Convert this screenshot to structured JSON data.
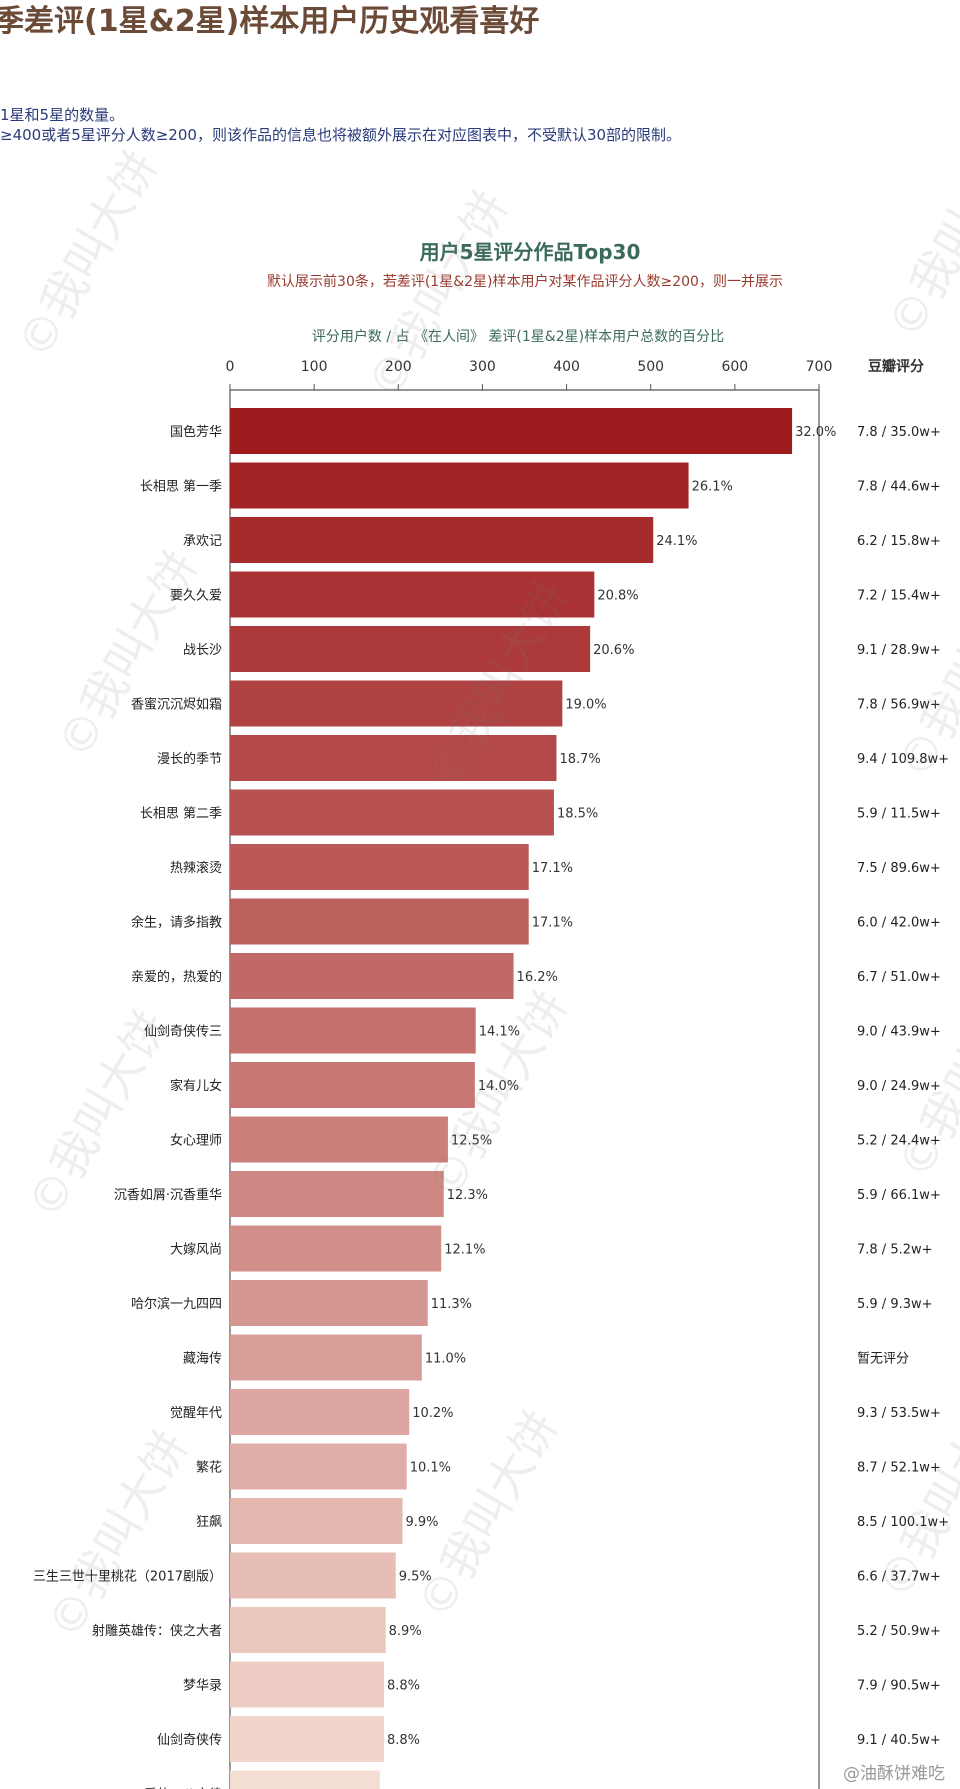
{
  "header": {
    "title": "季差评(1星&2星)样本用户历史观看喜好",
    "note1": "1星和5星的数量。",
    "note2": "≥400或者5星评分人数≥200，则该作品的信息也将被额外展示在对应图表中，不受默认30部的限制。"
  },
  "watermark_text": "©我叫大饼",
  "footer_brand": "油酥饼难吃",
  "chart_data": {
    "type": "bar",
    "title": "用户5星评分作品Top30",
    "subtitle": "默认展示前30条，若差评(1星&2星)样本用户对某作品评分人数≥200，则一并展示",
    "xlabel": "评分用户数 / 占 《在人间》 差评(1星&2星)样本用户总数的百分比",
    "right_header": "豆瓣评分",
    "xlim": [
      0,
      700
    ],
    "xticks": [
      "0",
      "100",
      "200",
      "300",
      "400",
      "500",
      "600",
      "700"
    ],
    "grid": false,
    "colors": {
      "dark": "#9e1b1e",
      "light": "#f4ddd2"
    },
    "categories": [
      "国色芳华",
      "长相思 第一季",
      "承欢记",
      "要久久爱",
      "战长沙",
      "香蜜沉沉烬如霜",
      "漫长的季节",
      "长相思 第二季",
      "热辣滚烫",
      "余生，请多指教",
      "亲爱的，热爱的",
      "仙剑奇侠传三",
      "家有儿女",
      "女心理师",
      "沉香如屑·沉香重华",
      "大嫁风尚",
      "哈尔滨一九四四",
      "藏海传",
      "觉醒年代",
      "繁花",
      "狂飙",
      "三生三世十里桃花（2017剧版）",
      "射雕英雄传：侠之大者",
      "梦华录",
      "仙剑奇侠传",
      "爱的二八定律"
    ],
    "values": [
      668,
      545,
      503,
      433,
      428,
      395,
      388,
      385,
      355,
      355,
      337,
      292,
      291,
      259,
      254,
      251,
      235,
      228,
      213,
      210,
      205,
      197,
      185,
      183,
      183,
      178
    ],
    "labels": [
      "32.0%",
      "26.1%",
      "24.1%",
      "20.8%",
      "20.6%",
      "19.0%",
      "18.7%",
      "18.5%",
      "17.1%",
      "17.1%",
      "16.2%",
      "14.1%",
      "14.0%",
      "12.5%",
      "12.3%",
      "12.1%",
      "11.3%",
      "11.0%",
      "10.2%",
      "10.1%",
      "9.9%",
      "9.5%",
      "8.9%",
      "8.8%",
      "8.8%",
      ""
    ],
    "ratings": [
      "7.8 / 35.0w+",
      "7.8 / 44.6w+",
      "6.2 / 15.8w+",
      "7.2 / 15.4w+",
      "9.1 / 28.9w+",
      "7.8 / 56.9w+",
      "9.4 / 109.8w+",
      "5.9 / 11.5w+",
      "7.5 / 89.6w+",
      "6.0 / 42.0w+",
      "6.7 / 51.0w+",
      "9.0 / 43.9w+",
      "9.0 / 24.9w+",
      "5.2 / 24.4w+",
      "5.9 / 66.1w+",
      "7.8 / 5.2w+",
      "5.9 / 9.3w+",
      "暂无评分",
      "9.3 / 53.5w+",
      "8.7 / 52.1w+",
      "8.5 / 100.1w+",
      "6.6 / 37.7w+",
      "5.2 / 50.9w+",
      "7.9 / 90.5w+",
      "9.1 / 40.5w+",
      ""
    ]
  }
}
